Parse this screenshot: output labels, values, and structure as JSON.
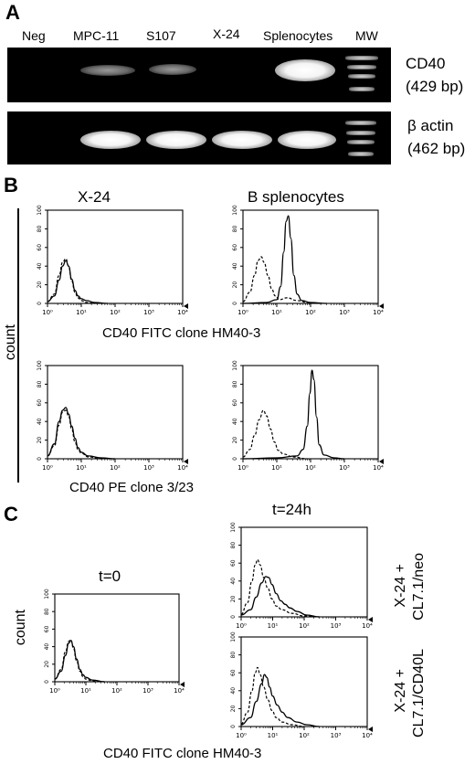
{
  "panelA": {
    "letter": "A",
    "lanes": [
      "Neg",
      "MPC-11",
      "S107",
      "X-24",
      "Splenocytes",
      "MW"
    ],
    "gels": [
      {
        "gene": "CD40",
        "size": "(429 bp)",
        "bands": [
          "none",
          "faint",
          "faint",
          "none",
          "strong"
        ]
      },
      {
        "gene": "β actin",
        "size": "(462 bp)",
        "bands": [
          "none",
          "strong",
          "strong",
          "strong",
          "strong"
        ]
      }
    ]
  },
  "panelB": {
    "letter": "B",
    "col_titles": [
      "X-24",
      "B splenocytes"
    ],
    "y_label": "count",
    "row_xlabels": [
      "CD40 FITC clone HM40-3",
      "CD40 PE clone 3/23"
    ]
  },
  "panelC": {
    "letter": "C",
    "t0_title": "t=0",
    "t24_title": "t=24h",
    "y_label": "count",
    "x_label": "CD40 FITC clone HM40-3",
    "side_labels": [
      [
        "X-24 +",
        "CL7.1/neo"
      ],
      [
        "X-24 +",
        "CL7.1/CD40L"
      ]
    ]
  },
  "axes": {
    "x_ticks": [
      "10⁰",
      "10¹",
      "10²",
      "10³",
      "10⁴"
    ],
    "y_ticks": [
      "0",
      "20",
      "40",
      "60",
      "80",
      "100"
    ],
    "x_range_log10": [
      0,
      4
    ],
    "y_range": [
      0,
      100
    ]
  },
  "chart_data": [
    {
      "type": "line",
      "panel": "B",
      "title": "X-24",
      "xlabel": "CD40 FITC clone HM40-3",
      "ylabel": "count",
      "xscale": "log",
      "xlim": [
        1,
        10000
      ],
      "ylim": [
        0,
        100
      ],
      "series": [
        {
          "style": "solid",
          "points": [
            [
              1,
              2
            ],
            [
              1.6,
              8
            ],
            [
              2.2,
              25
            ],
            [
              2.8,
              40
            ],
            [
              3.5,
              46
            ],
            [
              4.2,
              40
            ],
            [
              5.2,
              26
            ],
            [
              6.5,
              14
            ],
            [
              8,
              8
            ],
            [
              10,
              5
            ],
            [
              14,
              3
            ],
            [
              25,
              1
            ],
            [
              60,
              0
            ]
          ]
        },
        {
          "style": "dashed",
          "points": [
            [
              1,
              2
            ],
            [
              1.6,
              10
            ],
            [
              2.2,
              30
            ],
            [
              2.8,
              44
            ],
            [
              3.5,
              48
            ],
            [
              4.2,
              40
            ],
            [
              5.2,
              24
            ],
            [
              6.5,
              12
            ],
            [
              8,
              6
            ],
            [
              10,
              3
            ],
            [
              14,
              1
            ],
            [
              25,
              0
            ]
          ]
        }
      ]
    },
    {
      "type": "line",
      "panel": "B",
      "title": "B splenocytes",
      "xlabel": "CD40 FITC clone HM40-3",
      "ylabel": "count",
      "xscale": "log",
      "xlim": [
        1,
        10000
      ],
      "ylim": [
        0,
        100
      ],
      "series": [
        {
          "style": "solid",
          "points": [
            [
              1,
              0
            ],
            [
              5,
              1
            ],
            [
              10,
              4
            ],
            [
              13,
              18
            ],
            [
              16,
              55
            ],
            [
              19,
              88
            ],
            [
              22,
              94
            ],
            [
              26,
              70
            ],
            [
              32,
              30
            ],
            [
              40,
              10
            ],
            [
              55,
              3
            ],
            [
              100,
              1
            ],
            [
              300,
              0
            ]
          ]
        },
        {
          "style": "dashed",
          "points": [
            [
              1,
              2
            ],
            [
              1.6,
              12
            ],
            [
              2.2,
              30
            ],
            [
              2.8,
              46
            ],
            [
              3.5,
              50
            ],
            [
              4.2,
              44
            ],
            [
              5.5,
              30
            ],
            [
              7,
              16
            ],
            [
              9,
              8
            ],
            [
              12,
              4
            ],
            [
              20,
              6
            ],
            [
              40,
              3
            ],
            [
              100,
              0
            ]
          ]
        }
      ]
    },
    {
      "type": "line",
      "panel": "B",
      "title": "X-24",
      "xlabel": "CD40 PE clone 3/23",
      "ylabel": "count",
      "xscale": "log",
      "xlim": [
        1,
        10000
      ],
      "ylim": [
        0,
        100
      ],
      "series": [
        {
          "style": "solid",
          "points": [
            [
              1,
              3
            ],
            [
              1.6,
              16
            ],
            [
              2.2,
              40
            ],
            [
              2.8,
              52
            ],
            [
              3.5,
              55
            ],
            [
              4.2,
              48
            ],
            [
              5.2,
              35
            ],
            [
              6.5,
              22
            ],
            [
              8,
              12
            ],
            [
              10,
              7
            ],
            [
              16,
              3
            ],
            [
              40,
              1
            ],
            [
              100,
              0
            ]
          ]
        },
        {
          "style": "dashed",
          "points": [
            [
              1,
              3
            ],
            [
              1.6,
              14
            ],
            [
              2.2,
              36
            ],
            [
              2.8,
              50
            ],
            [
              3.5,
              52
            ],
            [
              4.2,
              46
            ],
            [
              5.2,
              32
            ],
            [
              6.5,
              18
            ],
            [
              8,
              10
            ],
            [
              10,
              6
            ],
            [
              16,
              2
            ],
            [
              40,
              0
            ]
          ]
        }
      ]
    },
    {
      "type": "line",
      "panel": "B",
      "title": "B splenocytes",
      "xlabel": "CD40 PE clone 3/23",
      "ylabel": "count",
      "xscale": "log",
      "xlim": [
        1,
        10000
      ],
      "ylim": [
        0,
        100
      ],
      "series": [
        {
          "style": "solid",
          "points": [
            [
              1,
              0
            ],
            [
              10,
              1
            ],
            [
              40,
              3
            ],
            [
              60,
              10
            ],
            [
              80,
              35
            ],
            [
              95,
              70
            ],
            [
              110,
              95
            ],
            [
              125,
              85
            ],
            [
              150,
              45
            ],
            [
              180,
              15
            ],
            [
              250,
              4
            ],
            [
              500,
              1
            ],
            [
              1000,
              0
            ]
          ]
        },
        {
          "style": "dashed",
          "points": [
            [
              1,
              2
            ],
            [
              1.6,
              10
            ],
            [
              2.2,
              25
            ],
            [
              3,
              42
            ],
            [
              4,
              52
            ],
            [
              5,
              46
            ],
            [
              6.5,
              32
            ],
            [
              8.5,
              18
            ],
            [
              11,
              9
            ],
            [
              16,
              5
            ],
            [
              30,
              2
            ],
            [
              80,
              0
            ]
          ]
        }
      ]
    },
    {
      "type": "line",
      "panel": "C",
      "title": "t=0",
      "xlabel": "CD40 FITC clone HM40-3",
      "ylabel": "count",
      "xscale": "log",
      "xlim": [
        1,
        10000
      ],
      "ylim": [
        0,
        100
      ],
      "series": [
        {
          "style": "solid",
          "points": [
            [
              1,
              3
            ],
            [
              1.6,
              12
            ],
            [
              2.2,
              30
            ],
            [
              2.8,
              44
            ],
            [
              3.3,
              47
            ],
            [
              4,
              40
            ],
            [
              5,
              26
            ],
            [
              6.5,
              14
            ],
            [
              8,
              8
            ],
            [
              10,
              5
            ],
            [
              16,
              2
            ],
            [
              40,
              0
            ]
          ]
        },
        {
          "style": "dashed",
          "points": [
            [
              1,
              3
            ],
            [
              1.6,
              14
            ],
            [
              2.2,
              34
            ],
            [
              2.8,
              46
            ],
            [
              3.3,
              48
            ],
            [
              4,
              38
            ],
            [
              5,
              24
            ],
            [
              6.5,
              12
            ],
            [
              8,
              6
            ],
            [
              10,
              3
            ],
            [
              16,
              1
            ],
            [
              40,
              0
            ]
          ]
        }
      ]
    },
    {
      "type": "line",
      "panel": "C",
      "title": "t=24h",
      "xlabel": "CD40 FITC clone HM40-3",
      "ylabel": "count",
      "xscale": "log",
      "xlim": [
        1,
        10000
      ],
      "ylim": [
        0,
        100
      ],
      "series": [
        {
          "style": "solid",
          "points": [
            [
              1,
              2
            ],
            [
              2,
              8
            ],
            [
              3,
              22
            ],
            [
              4.5,
              38
            ],
            [
              6,
              45
            ],
            [
              7.5,
              44
            ],
            [
              9.5,
              36
            ],
            [
              13,
              26
            ],
            [
              18,
              18
            ],
            [
              25,
              14
            ],
            [
              35,
              10
            ],
            [
              60,
              6
            ],
            [
              120,
              2
            ],
            [
              300,
              0
            ]
          ]
        },
        {
          "style": "dashed",
          "points": [
            [
              1,
              3
            ],
            [
              1.6,
              16
            ],
            [
              2.2,
              40
            ],
            [
              2.8,
              58
            ],
            [
              3.3,
              64
            ],
            [
              4,
              58
            ],
            [
              5.2,
              44
            ],
            [
              7,
              32
            ],
            [
              9.5,
              20
            ],
            [
              13,
              12
            ],
            [
              20,
              8
            ],
            [
              40,
              4
            ],
            [
              100,
              1
            ],
            [
              300,
              0
            ]
          ]
        }
      ]
    },
    {
      "type": "line",
      "panel": "C",
      "title": "t=24h",
      "xlabel": "CD40 FITC clone HM40-3",
      "ylabel": "count",
      "xscale": "log",
      "xlim": [
        1,
        10000
      ],
      "ylim": [
        0,
        100
      ],
      "series": [
        {
          "style": "solid",
          "points": [
            [
              1,
              2
            ],
            [
              2,
              10
            ],
            [
              3,
              28
            ],
            [
              4.5,
              48
            ],
            [
              5.5,
              58
            ],
            [
              6.5,
              55
            ],
            [
              8,
              44
            ],
            [
              10,
              34
            ],
            [
              14,
              24
            ],
            [
              20,
              16
            ],
            [
              30,
              10
            ],
            [
              60,
              5
            ],
            [
              120,
              2
            ],
            [
              300,
              0
            ]
          ]
        },
        {
          "style": "dashed",
          "points": [
            [
              1,
              3
            ],
            [
              1.6,
              16
            ],
            [
              2.2,
              40
            ],
            [
              2.8,
              60
            ],
            [
              3.3,
              66
            ],
            [
              4,
              58
            ],
            [
              5.2,
              44
            ],
            [
              7,
              30
            ],
            [
              9.5,
              18
            ],
            [
              13,
              10
            ],
            [
              20,
              5
            ],
            [
              40,
              2
            ],
            [
              100,
              0
            ]
          ]
        }
      ]
    }
  ]
}
